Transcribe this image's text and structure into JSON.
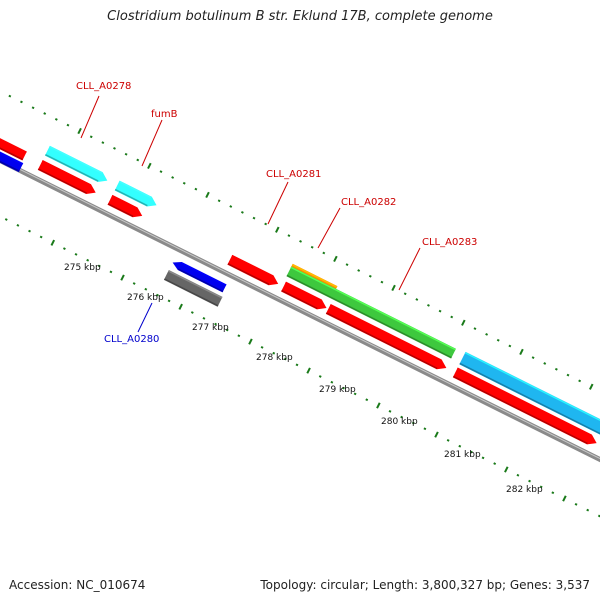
{
  "title": "Clostridium botulinum B str. Eklund 17B, complete genome",
  "accession": "Accession: NC_010674",
  "summary": "Topology: circular; Length: 3,800,327 bp; Genes: 3,537",
  "colors": {
    "backbone": "#8a8a8a",
    "tick": "#1a7a1a",
    "cds": "#ff0000",
    "gene_cyan": "#33ffff",
    "gene_sky": "#1fb6f0",
    "gene_blue": "#0000ee",
    "gene_gray": "#666666",
    "gene_green": "#3ec83e",
    "gene_orange": "#ff8c00",
    "label_red": "#cc0000",
    "label_blue": "#0000cc"
  },
  "kbp_ticks": [
    "275 kbp",
    "276 kbp",
    "277 kbp",
    "278 kbp",
    "279 kbp",
    "280 kbp",
    "281 kbp",
    "282 kbp"
  ],
  "gene_labels": [
    {
      "text": "CLL_A0278",
      "color": "label_red"
    },
    {
      "text": "fumB",
      "color": "label_red"
    },
    {
      "text": "CLL_A0281",
      "color": "label_red"
    },
    {
      "text": "CLL_A0282",
      "color": "label_red"
    },
    {
      "text": "CLL_A0283",
      "color": "label_red"
    },
    {
      "text": "CLL_A0280",
      "color": "label_blue"
    }
  ]
}
